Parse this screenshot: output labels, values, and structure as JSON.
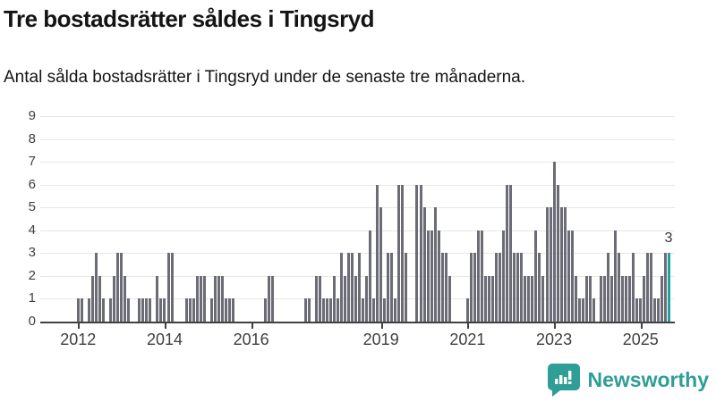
{
  "header": {
    "title": "Tre bostadsrätter såldes i Tingsryd",
    "subtitle": "Antal sålda bostadsrätter i Tingsryd under de senaste tre månaderna."
  },
  "chart_data": {
    "type": "bar",
    "title": "Tre bostadsrätter såldes i Tingsryd",
    "subtitle": "Antal sålda bostadsrätter i Tingsryd under de senaste tre månaderna.",
    "unit": "sålda bostadsrätter per månad (rullande tre månader)",
    "start_month": "2011-03",
    "end_month": "2025-09",
    "ylim": [
      0,
      9
    ],
    "grid": "horizontal",
    "y_ticks": [
      0,
      1,
      2,
      3,
      4,
      5,
      6,
      7,
      8,
      9
    ],
    "x_tick_years": [
      2012,
      2014,
      2016,
      2019,
      2021,
      2023,
      2025
    ],
    "x_tick_labels": [
      "2012",
      "2014",
      "2016",
      "2019",
      "2021",
      "2023",
      "2025"
    ],
    "values": [
      0,
      0,
      0,
      0,
      0,
      0,
      0,
      0,
      0,
      0,
      1,
      1,
      0,
      1,
      2,
      3,
      2,
      1,
      0,
      1,
      2,
      3,
      3,
      2,
      1,
      0,
      0,
      1,
      1,
      1,
      1,
      0,
      2,
      1,
      1,
      3,
      3,
      0,
      0,
      0,
      1,
      1,
      1,
      2,
      2,
      2,
      0,
      1,
      2,
      2,
      2,
      1,
      1,
      1,
      0,
      0,
      0,
      0,
      0,
      0,
      0,
      0,
      1,
      2,
      2,
      0,
      0,
      0,
      0,
      0,
      0,
      0,
      0,
      1,
      1,
      0,
      2,
      2,
      1,
      1,
      1,
      2,
      1,
      3,
      2,
      3,
      3,
      2,
      3,
      1,
      2,
      4,
      1,
      6,
      5,
      1,
      3,
      3,
      1,
      6,
      6,
      3,
      0,
      0,
      6,
      6,
      5,
      4,
      4,
      5,
      4,
      3,
      3,
      2,
      0,
      0,
      0,
      0,
      1,
      3,
      3,
      4,
      4,
      2,
      2,
      2,
      3,
      3,
      4,
      6,
      6,
      3,
      3,
      3,
      2,
      2,
      2,
      4,
      3,
      2,
      5,
      5,
      7,
      6,
      5,
      5,
      4,
      4,
      2,
      1,
      1,
      2,
      2,
      1,
      0,
      2,
      2,
      3,
      2,
      4,
      3,
      2,
      2,
      2,
      3,
      1,
      1,
      2,
      3,
      3,
      1,
      1,
      2,
      3,
      3
    ],
    "highlight_last_bar": true,
    "last_value_label": "3",
    "colors": {
      "bar": "#6c6c76",
      "highlight": "#1fa3a0",
      "gridline": "#e7e7e7",
      "axis": "#414141",
      "axis_text": "#3f3f3f"
    },
    "legend": "none"
  },
  "footer": {
    "brand": "Newsworthy",
    "brand_color": "#2e9e97",
    "logo_icon": "bar-chart-speech-bubble-icon"
  }
}
